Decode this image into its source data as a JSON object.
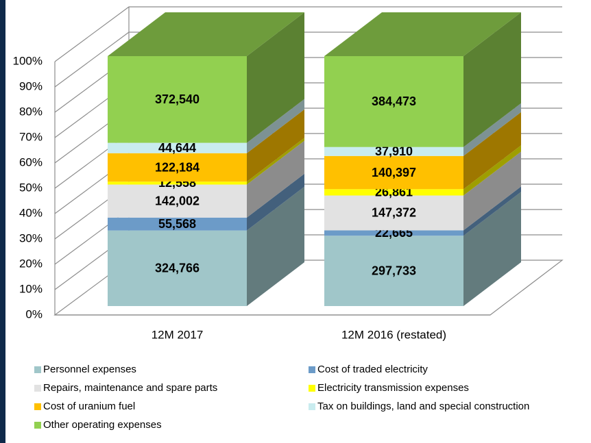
{
  "chart_data": {
    "type": "bar",
    "stacking": "percent",
    "categories": [
      "12M 2017",
      "12M 2016 (restated)"
    ],
    "series": [
      {
        "name": "Personnel expenses",
        "color": "#a0c6c9",
        "values": [
          324766,
          297733
        ],
        "value_labels": [
          "324,766",
          "297,733"
        ]
      },
      {
        "name": "Cost of traded electricity",
        "color": "#6c9bc8",
        "values": [
          55568,
          22665
        ],
        "value_labels": [
          "55,568",
          "22,665"
        ]
      },
      {
        "name": "Repairs, maintenance and spare parts",
        "color": "#e2e2e2",
        "values": [
          142002,
          147372
        ],
        "value_labels": [
          "142,002",
          "147,372"
        ]
      },
      {
        "name": "Electricity transmission expenses",
        "color": "#ffff00",
        "values": [
          12558,
          26861
        ],
        "value_labels": [
          "12,558",
          "26,861"
        ]
      },
      {
        "name": "Cost of uranium fuel",
        "color": "#ffc000",
        "values": [
          122184,
          140397
        ],
        "value_labels": [
          "122,184",
          "140,397"
        ]
      },
      {
        "name": "Tax on buildings, land and special construction",
        "color": "#c9ecef",
        "values": [
          44644,
          37910
        ],
        "value_labels": [
          "44,644",
          "37,910"
        ]
      },
      {
        "name": "Other operating expenses",
        "color": "#92d050",
        "values": [
          372540,
          384473
        ],
        "value_labels": [
          "372,540",
          "384,473"
        ]
      }
    ],
    "ylim": [
      0,
      100
    ],
    "yticks": [
      {
        "value": 0,
        "label": "0%"
      },
      {
        "value": 10,
        "label": "10%"
      },
      {
        "value": 20,
        "label": "20%"
      },
      {
        "value": 30,
        "label": "30%"
      },
      {
        "value": 40,
        "label": "40%"
      },
      {
        "value": 50,
        "label": "50%"
      },
      {
        "value": 60,
        "label": "60%"
      },
      {
        "value": 70,
        "label": "70%"
      },
      {
        "value": 80,
        "label": "80%"
      },
      {
        "value": 90,
        "label": "90%"
      },
      {
        "value": 100,
        "label": "100%"
      }
    ],
    "grid": true
  }
}
